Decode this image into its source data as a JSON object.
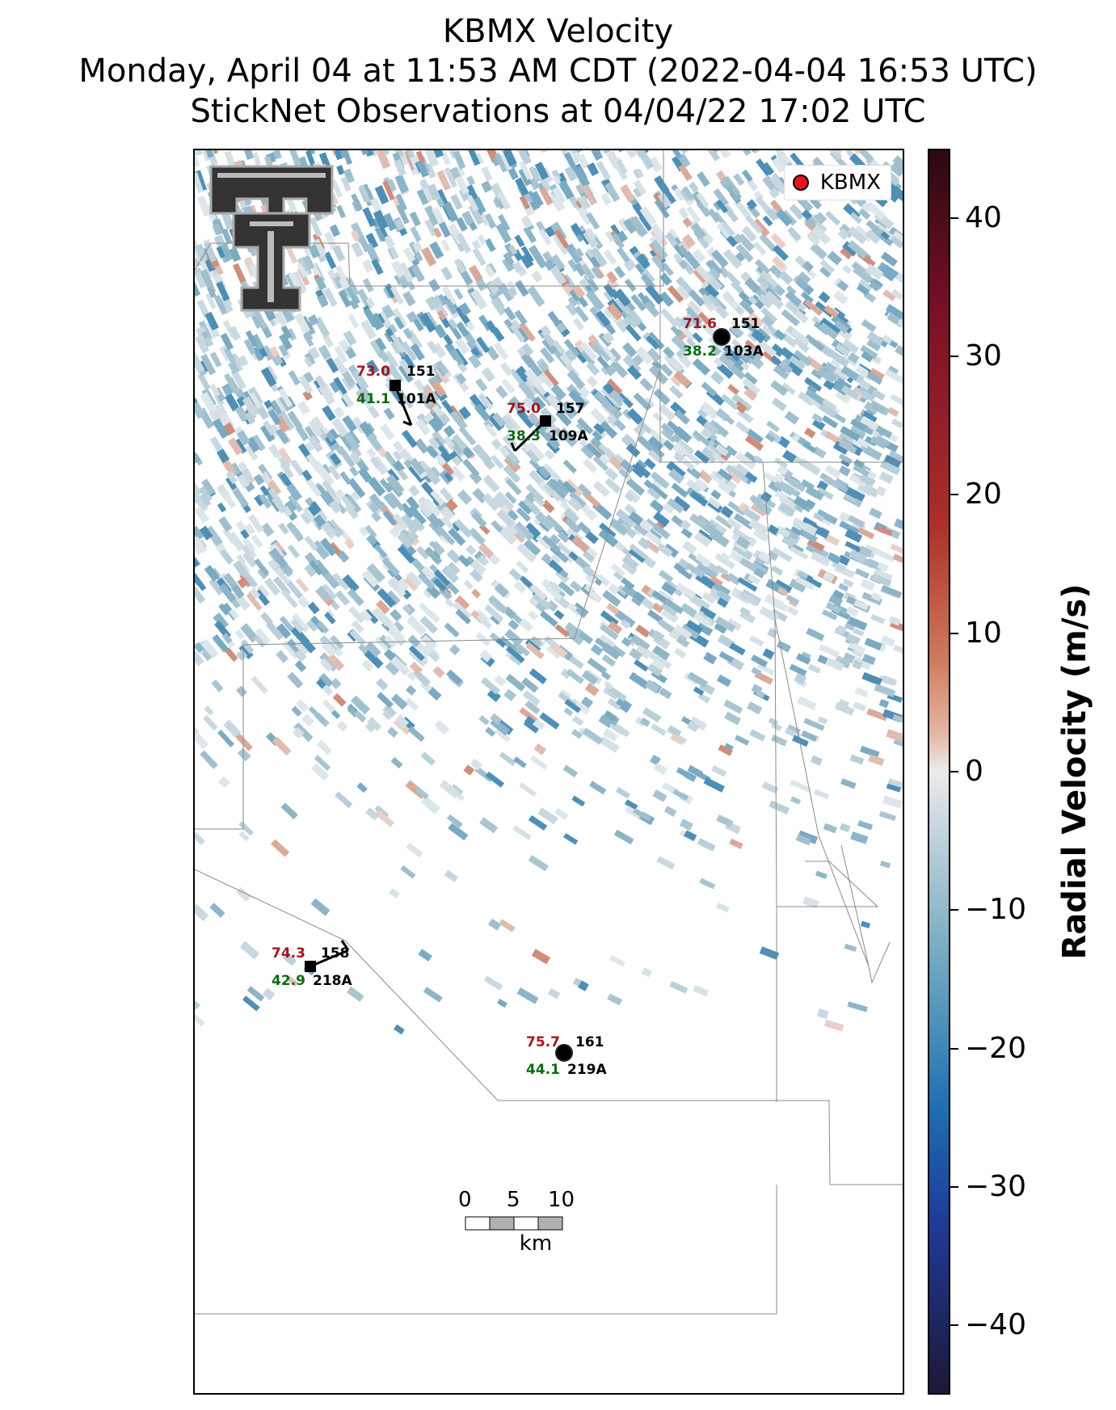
{
  "title": {
    "line1": "KBMX Velocity",
    "line2": "Monday, April 04 at 11:53 AM CDT (2022-04-04 16:53 UTC)",
    "line3": "StickNet Observations at 04/04/22 17:02 UTC"
  },
  "legend": {
    "label": "KBMX",
    "marker_color": "#e8141c"
  },
  "logo": {
    "name": "Texas Tech Double T",
    "icon": "double-t-logo-icon"
  },
  "stations": [
    {
      "id": "101A",
      "temp": "73.0",
      "dew": "41.1",
      "pressure": "151",
      "marker": "square"
    },
    {
      "id": "109A",
      "temp": "75.0",
      "dew": "38.3",
      "pressure": "157",
      "marker": "square"
    },
    {
      "id": "103A",
      "temp": "71.6",
      "dew": "38.2",
      "pressure": "151",
      "marker": "circle"
    },
    {
      "id": "218A",
      "temp": "74.3",
      "dew": "42.9",
      "pressure": "158",
      "marker": "square"
    },
    {
      "id": "219A",
      "temp": "75.7",
      "dew": "44.1",
      "pressure": "161",
      "marker": "circle"
    }
  ],
  "scale_bar": {
    "ticks": [
      "0",
      "5",
      "10"
    ],
    "unit": "km"
  },
  "colorbar": {
    "label": "Radial Velocity (m/s)",
    "ticks": [
      "40",
      "30",
      "20",
      "10",
      "0",
      "−10",
      "−20",
      "−30",
      "−40"
    ],
    "range": [
      -45,
      45
    ]
  },
  "colors": {
    "temperature": "#a5141a",
    "dewpoint": "#0d6b12"
  }
}
